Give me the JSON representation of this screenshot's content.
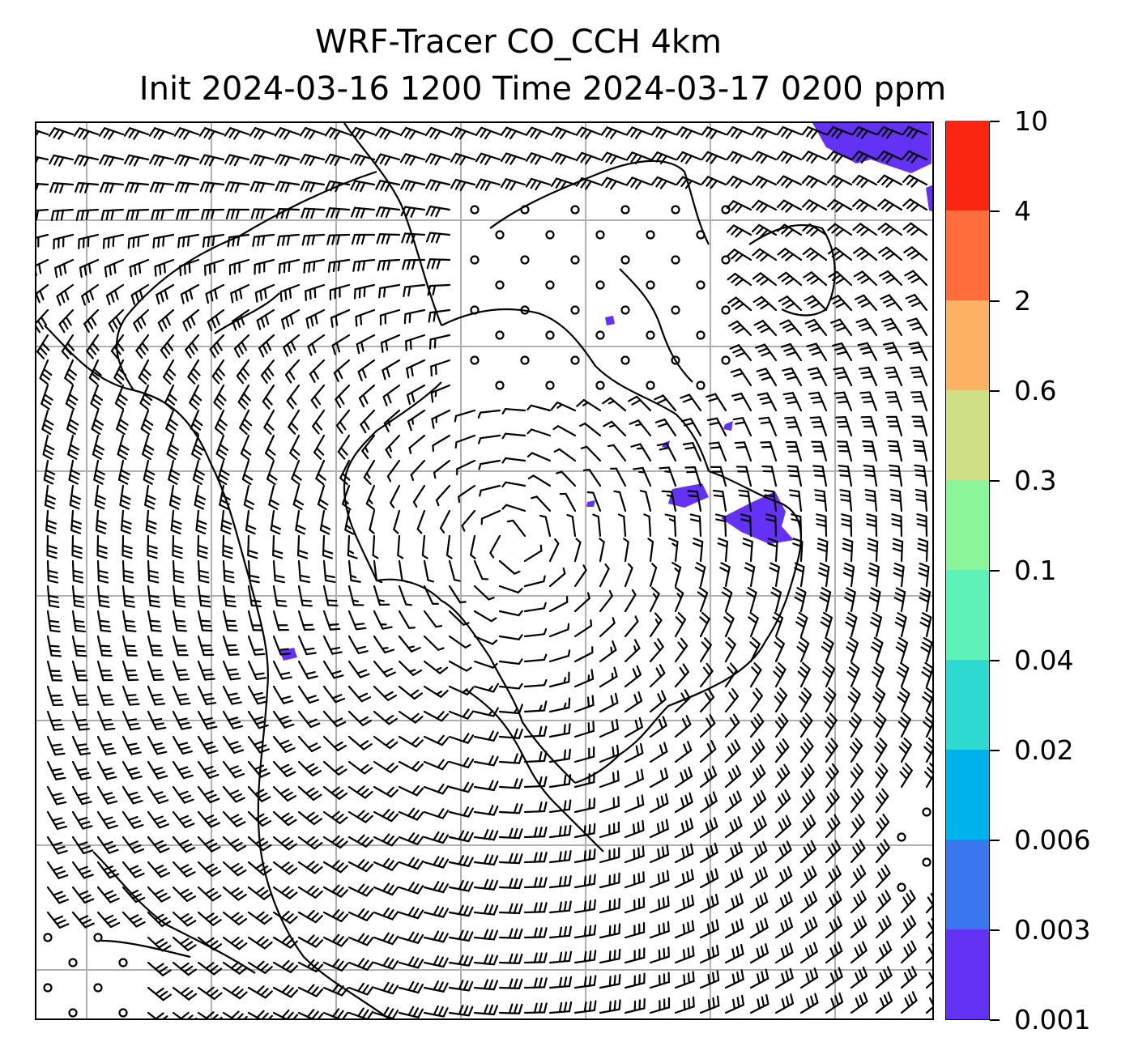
{
  "figure": {
    "title_line1": "WRF-Tracer CO_CCH 4km",
    "title_line2": "Init 2024-03-16 1200 Time 2024-03-17 0200 ppm"
  },
  "colorbar": {
    "tick_labels": [
      "0.001",
      "0.003",
      "0.006",
      "0.02",
      "0.04",
      "0.1",
      "0.3",
      "0.6",
      "2",
      "4",
      "10"
    ],
    "colors": [
      "#6432f5",
      "#3a76ee",
      "#00b2ea",
      "#2ed9d1",
      "#5ff2b8",
      "#8bf59a",
      "#cfdf86",
      "#fdb163",
      "#ff6e3a",
      "#fb2611"
    ]
  },
  "map": {
    "grid_color": "#b0b0b0",
    "wind_barb_color": "#000000",
    "tracer_color": "#6432f5",
    "icons": [
      "wind-barb-icon",
      "calm-wind-circle-icon",
      "coastline-icon"
    ]
  }
}
